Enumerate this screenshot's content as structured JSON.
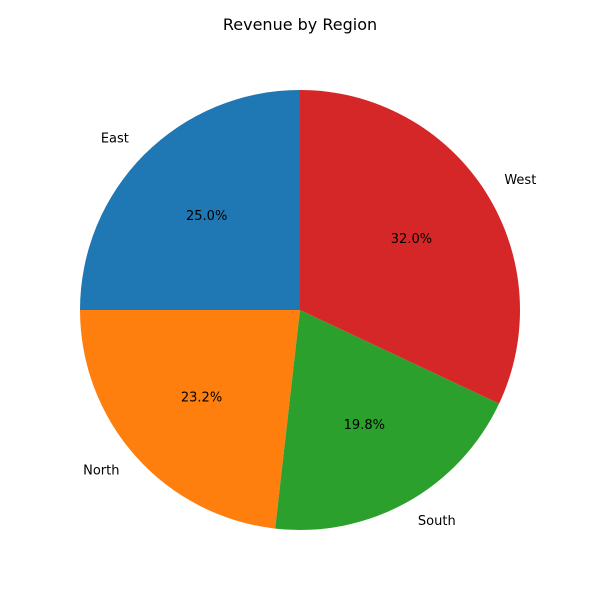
{
  "chart_data": {
    "type": "pie",
    "title": "Revenue by Region",
    "categories": [
      "East",
      "North",
      "South",
      "West"
    ],
    "values": [
      25.0,
      23.2,
      19.8,
      32.0
    ],
    "value_labels": [
      "25.0%",
      "23.2%",
      "19.8%",
      "32.0%"
    ],
    "colors": [
      "#1f77b4",
      "#ff7f0e",
      "#2ca02c",
      "#d62728"
    ],
    "start_angle_deg": 90,
    "direction": "counterclockwise",
    "legend": "none"
  }
}
